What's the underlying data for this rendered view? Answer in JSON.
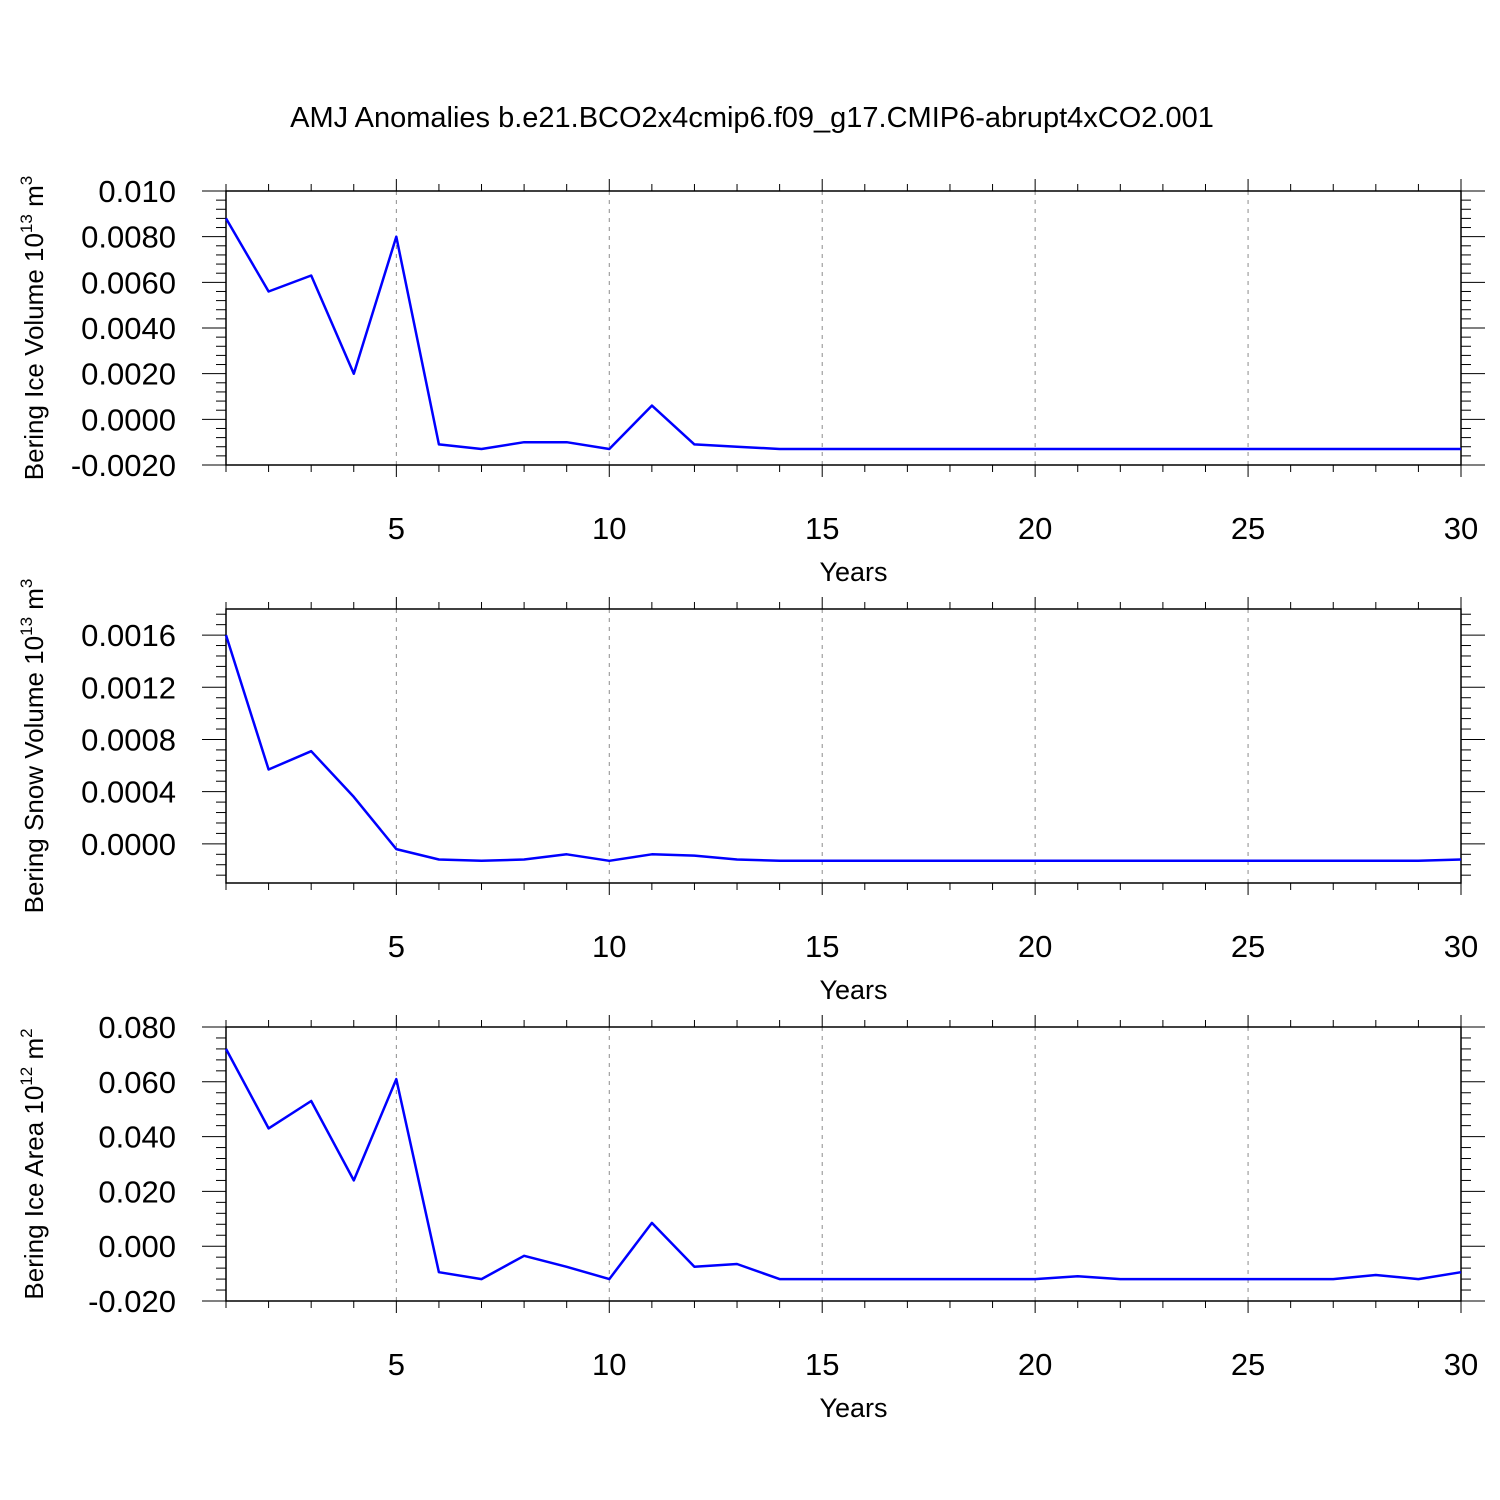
{
  "title": "AMJ Anomalies b.e21.BCO2x4cmip6.f09_g17.CMIP6-abrupt4xCO2.001",
  "line_color": "#0000ff",
  "chart_data": [
    {
      "type": "line",
      "ylabel": "Bering Ice Volume 10",
      "ylabel_exp": "13",
      "ylabel_unit": " m",
      "ylabel_unit_exp": "3",
      "xlabel": "Years",
      "xlim": [
        1,
        30
      ],
      "ylim": [
        -0.002,
        0.01
      ],
      "yticks": [
        -0.002,
        0.0,
        0.002,
        0.004,
        0.006,
        0.008,
        0.01
      ],
      "ytick_labels": [
        "-0.0020",
        "0.0000",
        "0.0020",
        "0.0040",
        "0.0060",
        "0.0080",
        "0.010"
      ],
      "xticks": [
        5,
        10,
        15,
        20,
        25,
        30
      ],
      "xtick_labels": [
        "5",
        "10",
        "15",
        "20",
        "25",
        "30"
      ],
      "x": [
        1,
        2,
        3,
        4,
        5,
        6,
        7,
        8,
        9,
        10,
        11,
        12,
        13,
        14,
        15,
        16,
        17,
        18,
        19,
        20,
        21,
        22,
        23,
        24,
        25,
        26,
        27,
        28,
        29,
        30
      ],
      "series": [
        {
          "name": "Bering Ice Volume",
          "values": [
            0.0088,
            0.0056,
            0.0063,
            0.002,
            0.008,
            -0.0011,
            -0.0013,
            -0.001,
            -0.001,
            -0.0013,
            0.0006,
            -0.0011,
            -0.0012,
            -0.0013,
            -0.0013,
            -0.0013,
            -0.0013,
            -0.0013,
            -0.0013,
            -0.0013,
            -0.0013,
            -0.0013,
            -0.0013,
            -0.0013,
            -0.0013,
            -0.0013,
            -0.0013,
            -0.0013,
            -0.0013,
            -0.0013
          ]
        }
      ]
    },
    {
      "type": "line",
      "ylabel": "Bering Snow Volume 10",
      "ylabel_exp": "13",
      "ylabel_unit": " m",
      "ylabel_unit_exp": "3",
      "xlabel": "Years",
      "xlim": [
        1,
        30
      ],
      "ylim": [
        -0.0003,
        0.0018
      ],
      "yticks": [
        0.0,
        0.0004,
        0.0008,
        0.0012,
        0.0016
      ],
      "ytick_labels": [
        "0.0000",
        "0.0004",
        "0.0008",
        "0.0012",
        "0.0016"
      ],
      "xticks": [
        5,
        10,
        15,
        20,
        25,
        30
      ],
      "xtick_labels": [
        "5",
        "10",
        "15",
        "20",
        "25",
        "30"
      ],
      "x": [
        1,
        2,
        3,
        4,
        5,
        6,
        7,
        8,
        9,
        10,
        11,
        12,
        13,
        14,
        15,
        16,
        17,
        18,
        19,
        20,
        21,
        22,
        23,
        24,
        25,
        26,
        27,
        28,
        29,
        30
      ],
      "series": [
        {
          "name": "Bering Snow Volume",
          "values": [
            0.0016,
            0.00057,
            0.00071,
            0.00036,
            -4e-05,
            -0.00012,
            -0.00013,
            -0.00012,
            -8e-05,
            -0.00013,
            -8e-05,
            -9e-05,
            -0.00012,
            -0.00013,
            -0.00013,
            -0.00013,
            -0.00013,
            -0.00013,
            -0.00013,
            -0.00013,
            -0.00013,
            -0.00013,
            -0.00013,
            -0.00013,
            -0.00013,
            -0.00013,
            -0.00013,
            -0.00013,
            -0.00013,
            -0.00012
          ]
        }
      ]
    },
    {
      "type": "line",
      "ylabel": "Bering Ice Area 10",
      "ylabel_exp": "12",
      "ylabel_unit": " m",
      "ylabel_unit_exp": "2",
      "xlabel": "Years",
      "xlim": [
        1,
        30
      ],
      "ylim": [
        -0.02,
        0.08
      ],
      "yticks": [
        -0.02,
        0.0,
        0.02,
        0.04,
        0.06,
        0.08
      ],
      "ytick_labels": [
        "-0.020",
        "0.000",
        "0.020",
        "0.040",
        "0.060",
        "0.080"
      ],
      "xticks": [
        5,
        10,
        15,
        20,
        25,
        30
      ],
      "xtick_labels": [
        "5",
        "10",
        "15",
        "20",
        "25",
        "30"
      ],
      "x": [
        1,
        2,
        3,
        4,
        5,
        6,
        7,
        8,
        9,
        10,
        11,
        12,
        13,
        14,
        15,
        16,
        17,
        18,
        19,
        20,
        21,
        22,
        23,
        24,
        25,
        26,
        27,
        28,
        29,
        30
      ],
      "series": [
        {
          "name": "Bering Ice Area",
          "values": [
            0.072,
            0.043,
            0.053,
            0.024,
            0.061,
            -0.0095,
            -0.012,
            -0.0035,
            -0.0075,
            -0.012,
            0.0085,
            -0.0075,
            -0.0065,
            -0.012,
            -0.012,
            -0.012,
            -0.012,
            -0.012,
            -0.012,
            -0.012,
            -0.011,
            -0.012,
            -0.012,
            -0.012,
            -0.012,
            -0.012,
            -0.012,
            -0.0105,
            -0.012,
            -0.0095
          ]
        }
      ]
    }
  ]
}
